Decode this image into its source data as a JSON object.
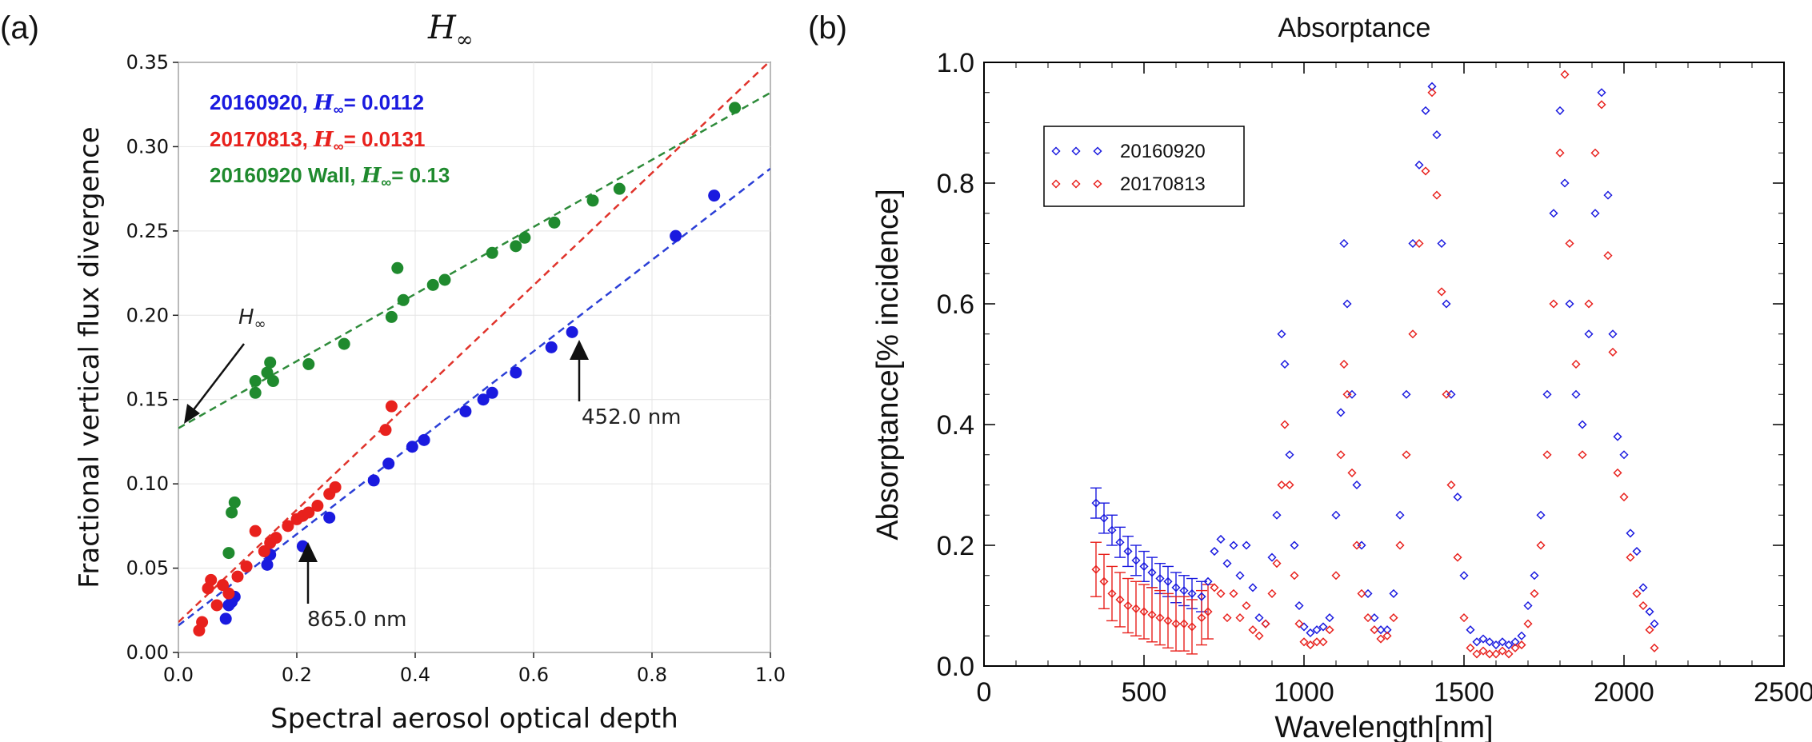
{
  "panel_a": {
    "label": "(a)",
    "title": "H",
    "title_sub": "∞",
    "colors": {
      "blue": "#1a1adf",
      "red": "#e8211d",
      "green": "#1f8a2e",
      "fit_blue": "#2b3fd6",
      "fit_red": "#e0332b",
      "fit_green": "#2e8b3a"
    },
    "legend": [
      {
        "prefix": "20160920, ",
        "h": "H",
        "sub": "∞",
        "suffix": "= 0.0112",
        "color": "#1a1adf"
      },
      {
        "prefix": "20170813, ",
        "h": "H",
        "sub": "∞",
        "suffix": "= 0.0131",
        "color": "#e8211d"
      },
      {
        "prefix": "20160920 Wall, ",
        "h": "H",
        "sub": "∞",
        "suffix": "= 0.13",
        "color": "#1f8a2e"
      }
    ],
    "annotations": {
      "hinf_label": "H",
      "hinf_sub": "∞",
      "nm452": "452.0 nm",
      "nm865": "865.0 nm"
    },
    "chart_data": {
      "type": "scatter",
      "title": "H∞",
      "xlabel": "Spectral aerosol optical depth",
      "ylabel": "Fractional vertical flux divergence",
      "xlim": [
        0.0,
        1.0
      ],
      "ylim": [
        0.0,
        0.35
      ],
      "xticks": [
        "0.0",
        "0.2",
        "0.4",
        "0.6",
        "0.8",
        "1.0"
      ],
      "yticks": [
        "0.00",
        "0.05",
        "0.10",
        "0.15",
        "0.20",
        "0.25",
        "0.30",
        "0.35"
      ],
      "series": [
        {
          "name": "20160920",
          "color": "#1a1adf",
          "x": [
            0.08,
            0.085,
            0.09,
            0.095,
            0.15,
            0.155,
            0.21,
            0.255,
            0.33,
            0.355,
            0.395,
            0.415,
            0.485,
            0.515,
            0.53,
            0.57,
            0.63,
            0.665,
            0.84,
            0.905
          ],
          "y": [
            0.02,
            0.028,
            0.03,
            0.033,
            0.052,
            0.058,
            0.063,
            0.08,
            0.102,
            0.112,
            0.122,
            0.126,
            0.143,
            0.15,
            0.154,
            0.166,
            0.181,
            0.19,
            0.247,
            0.271
          ],
          "fit": {
            "x0": 0.0,
            "y0": 0.016,
            "x1": 1.0,
            "y1": 0.287
          }
        },
        {
          "name": "20170813",
          "color": "#e8211d",
          "x": [
            0.035,
            0.04,
            0.05,
            0.055,
            0.065,
            0.075,
            0.085,
            0.1,
            0.115,
            0.13,
            0.145,
            0.155,
            0.165,
            0.185,
            0.2,
            0.21,
            0.22,
            0.235,
            0.255,
            0.265,
            0.35,
            0.36
          ],
          "y": [
            0.013,
            0.018,
            0.038,
            0.043,
            0.028,
            0.04,
            0.035,
            0.045,
            0.051,
            0.072,
            0.06,
            0.065,
            0.068,
            0.075,
            0.079,
            0.081,
            0.083,
            0.087,
            0.094,
            0.098,
            0.132,
            0.146
          ],
          "fit": {
            "x0": 0.0,
            "y0": 0.018,
            "x1": 1.0,
            "y1": 0.351
          }
        },
        {
          "name": "20160920 Wall",
          "color": "#1f8a2e",
          "x": [
            0.085,
            0.09,
            0.095,
            0.13,
            0.13,
            0.15,
            0.155,
            0.16,
            0.22,
            0.28,
            0.36,
            0.37,
            0.38,
            0.43,
            0.45,
            0.53,
            0.57,
            0.585,
            0.635,
            0.7,
            0.745,
            0.94
          ],
          "y": [
            0.059,
            0.083,
            0.089,
            0.154,
            0.161,
            0.166,
            0.172,
            0.161,
            0.171,
            0.183,
            0.199,
            0.228,
            0.209,
            0.218,
            0.221,
            0.237,
            0.241,
            0.246,
            0.255,
            0.268,
            0.275,
            0.323
          ],
          "fit": {
            "x0": 0.0,
            "y0": 0.133,
            "x1": 1.0,
            "y1": 0.332
          }
        }
      ]
    }
  },
  "panel_b": {
    "label": "(b)",
    "chart_data": {
      "type": "scatter",
      "title": "Absorptance",
      "xlabel": "Wavelength[nm]",
      "ylabel": "Absorptance[% incidence]",
      "xlim": [
        0,
        2500
      ],
      "ylim": [
        0.0,
        1.0
      ],
      "xticks": [
        "0",
        "500",
        "1000",
        "1500",
        "2000",
        "2500"
      ],
      "yticks": [
        "0.0",
        "0.2",
        "0.4",
        "0.6",
        "0.8",
        "1.0"
      ],
      "legend": [
        {
          "name": "20160920",
          "color": "#1a1adf"
        },
        {
          "name": "20170813",
          "color": "#e8211d"
        }
      ],
      "series": [
        {
          "name": "20160920",
          "color": "#1a1adf",
          "points": [
            [
              350,
              0.27
            ],
            [
              375,
              0.245
            ],
            [
              400,
              0.225
            ],
            [
              425,
              0.205
            ],
            [
              450,
              0.19
            ],
            [
              475,
              0.175
            ],
            [
              500,
              0.165
            ],
            [
              525,
              0.155
            ],
            [
              550,
              0.145
            ],
            [
              575,
              0.14
            ],
            [
              600,
              0.13
            ],
            [
              625,
              0.125
            ],
            [
              650,
              0.12
            ],
            [
              680,
              0.115
            ],
            [
              700,
              0.14
            ],
            [
              720,
              0.19
            ],
            [
              740,
              0.21
            ],
            [
              760,
              0.17
            ],
            [
              780,
              0.2
            ],
            [
              800,
              0.15
            ],
            [
              820,
              0.2
            ],
            [
              840,
              0.13
            ],
            [
              860,
              0.08
            ],
            [
              880,
              0.07
            ],
            [
              900,
              0.18
            ],
            [
              915,
              0.25
            ],
            [
              930,
              0.55
            ],
            [
              940,
              0.5
            ],
            [
              955,
              0.35
            ],
            [
              970,
              0.2
            ],
            [
              985,
              0.1
            ],
            [
              1000,
              0.065
            ],
            [
              1020,
              0.055
            ],
            [
              1040,
              0.06
            ],
            [
              1060,
              0.065
            ],
            [
              1080,
              0.08
            ],
            [
              1100,
              0.25
            ],
            [
              1115,
              0.42
            ],
            [
              1125,
              0.7
            ],
            [
              1135,
              0.6
            ],
            [
              1150,
              0.45
            ],
            [
              1165,
              0.3
            ],
            [
              1180,
              0.2
            ],
            [
              1200,
              0.12
            ],
            [
              1220,
              0.08
            ],
            [
              1240,
              0.06
            ],
            [
              1260,
              0.06
            ],
            [
              1280,
              0.12
            ],
            [
              1300,
              0.25
            ],
            [
              1320,
              0.45
            ],
            [
              1340,
              0.7
            ],
            [
              1360,
              0.83
            ],
            [
              1380,
              0.92
            ],
            [
              1400,
              0.96
            ],
            [
              1415,
              0.88
            ],
            [
              1430,
              0.7
            ],
            [
              1445,
              0.6
            ],
            [
              1460,
              0.45
            ],
            [
              1480,
              0.28
            ],
            [
              1500,
              0.15
            ],
            [
              1520,
              0.06
            ],
            [
              1540,
              0.04
            ],
            [
              1560,
              0.045
            ],
            [
              1580,
              0.04
            ],
            [
              1600,
              0.035
            ],
            [
              1620,
              0.04
            ],
            [
              1640,
              0.035
            ],
            [
              1660,
              0.04
            ],
            [
              1680,
              0.05
            ],
            [
              1700,
              0.1
            ],
            [
              1720,
              0.15
            ],
            [
              1740,
              0.25
            ],
            [
              1760,
              0.45
            ],
            [
              1780,
              0.75
            ],
            [
              1800,
              0.92
            ],
            [
              1815,
              0.8
            ],
            [
              1830,
              0.6
            ],
            [
              1850,
              0.45
            ],
            [
              1870,
              0.4
            ],
            [
              1890,
              0.55
            ],
            [
              1910,
              0.75
            ],
            [
              1930,
              0.95
            ],
            [
              1950,
              0.78
            ],
            [
              1965,
              0.55
            ],
            [
              1980,
              0.38
            ],
            [
              2000,
              0.35
            ],
            [
              2020,
              0.22
            ],
            [
              2040,
              0.19
            ],
            [
              2060,
              0.13
            ],
            [
              2080,
              0.09
            ],
            [
              2095,
              0.07
            ]
          ]
        },
        {
          "name": "20170813",
          "color": "#e8211d",
          "points": [
            [
              350,
              0.16
            ],
            [
              375,
              0.14
            ],
            [
              400,
              0.12
            ],
            [
              425,
              0.11
            ],
            [
              450,
              0.1
            ],
            [
              475,
              0.095
            ],
            [
              500,
              0.09
            ],
            [
              525,
              0.085
            ],
            [
              550,
              0.08
            ],
            [
              575,
              0.075
            ],
            [
              600,
              0.07
            ],
            [
              625,
              0.07
            ],
            [
              650,
              0.065
            ],
            [
              680,
              0.08
            ],
            [
              700,
              0.09
            ],
            [
              720,
              0.13
            ],
            [
              740,
              0.12
            ],
            [
              760,
              0.08
            ],
            [
              780,
              0.12
            ],
            [
              800,
              0.08
            ],
            [
              820,
              0.1
            ],
            [
              840,
              0.06
            ],
            [
              860,
              0.05
            ],
            [
              880,
              0.07
            ],
            [
              900,
              0.12
            ],
            [
              915,
              0.17
            ],
            [
              930,
              0.3
            ],
            [
              940,
              0.4
            ],
            [
              955,
              0.3
            ],
            [
              970,
              0.15
            ],
            [
              985,
              0.07
            ],
            [
              1000,
              0.04
            ],
            [
              1020,
              0.035
            ],
            [
              1040,
              0.04
            ],
            [
              1060,
              0.04
            ],
            [
              1080,
              0.06
            ],
            [
              1100,
              0.15
            ],
            [
              1115,
              0.35
            ],
            [
              1125,
              0.5
            ],
            [
              1135,
              0.45
            ],
            [
              1150,
              0.32
            ],
            [
              1165,
              0.2
            ],
            [
              1180,
              0.12
            ],
            [
              1200,
              0.08
            ],
            [
              1220,
              0.06
            ],
            [
              1240,
              0.045
            ],
            [
              1260,
              0.05
            ],
            [
              1280,
              0.08
            ],
            [
              1300,
              0.2
            ],
            [
              1320,
              0.35
            ],
            [
              1340,
              0.55
            ],
            [
              1360,
              0.7
            ],
            [
              1380,
              0.82
            ],
            [
              1400,
              0.95
            ],
            [
              1415,
              0.78
            ],
            [
              1430,
              0.62
            ],
            [
              1445,
              0.45
            ],
            [
              1460,
              0.3
            ],
            [
              1480,
              0.18
            ],
            [
              1500,
              0.08
            ],
            [
              1520,
              0.03
            ],
            [
              1540,
              0.02
            ],
            [
              1560,
              0.025
            ],
            [
              1580,
              0.02
            ],
            [
              1600,
              0.02
            ],
            [
              1620,
              0.025
            ],
            [
              1640,
              0.02
            ],
            [
              1660,
              0.03
            ],
            [
              1680,
              0.035
            ],
            [
              1700,
              0.07
            ],
            [
              1720,
              0.12
            ],
            [
              1740,
              0.2
            ],
            [
              1760,
              0.35
            ],
            [
              1780,
              0.6
            ],
            [
              1800,
              0.85
            ],
            [
              1815,
              0.98
            ],
            [
              1830,
              0.7
            ],
            [
              1850,
              0.5
            ],
            [
              1870,
              0.35
            ],
            [
              1890,
              0.6
            ],
            [
              1910,
              0.85
            ],
            [
              1930,
              0.93
            ],
            [
              1950,
              0.68
            ],
            [
              1965,
              0.52
            ],
            [
              1980,
              0.32
            ],
            [
              2000,
              0.28
            ],
            [
              2020,
              0.18
            ],
            [
              2040,
              0.12
            ],
            [
              2060,
              0.1
            ],
            [
              2080,
              0.06
            ],
            [
              2095,
              0.03
            ]
          ]
        }
      ],
      "error_bars": {
        "20160920": {
          "color": "#1a1adf",
          "x_from": 350,
          "x_to": 680,
          "half_width": 0.025
        },
        "20170813": {
          "color": "#e8211d",
          "x_from": 350,
          "x_to": 700,
          "half_width": 0.045
        }
      }
    }
  }
}
